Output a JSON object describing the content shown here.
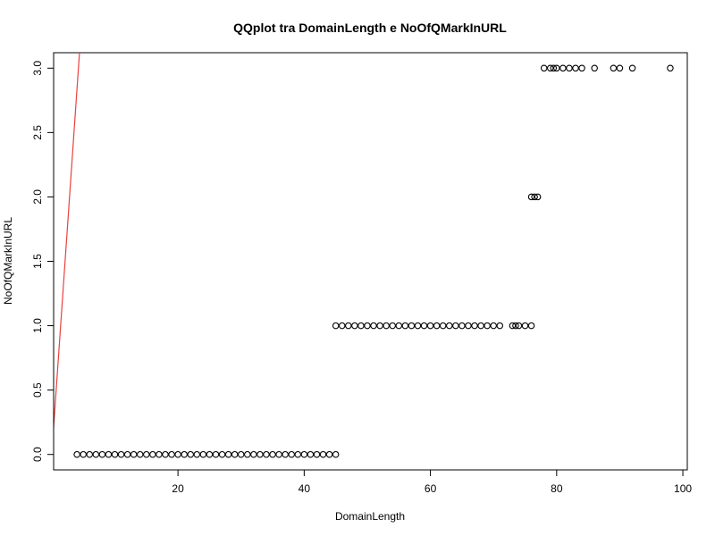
{
  "chart_data": {
    "type": "scatter",
    "title": "QQplot tra DomainLength e NoOfQMarkInURL",
    "xlabel": "DomainLength",
    "ylabel": "NoOfQMarkInURL",
    "xlim": [
      0.3,
      100.7
    ],
    "ylim": [
      -0.12,
      3.12
    ],
    "xticks": [
      20,
      40,
      60,
      80,
      100
    ],
    "yticks": [
      0.0,
      0.5,
      1.0,
      1.5,
      2.0,
      2.5,
      3.0
    ],
    "ytick_labels": [
      "0.0",
      "0.5",
      "1.0",
      "1.5",
      "2.0",
      "2.5",
      "3.0"
    ],
    "grid": false,
    "point_color": "#000000",
    "reference_line": {
      "color": "#e8423f",
      "x": [
        0,
        4.4
      ],
      "y": [
        0,
        3.12
      ]
    },
    "series": [
      {
        "x": [
          4,
          5,
          6,
          7,
          8,
          9,
          10,
          11,
          12,
          13,
          14,
          15,
          16,
          17,
          18,
          19,
          20,
          21,
          22,
          23,
          24,
          25,
          26,
          27,
          28,
          29,
          30,
          31,
          32,
          33,
          34,
          35,
          36,
          37,
          38,
          39,
          40,
          41,
          42,
          43,
          44,
          45,
          45,
          46,
          47,
          48,
          49,
          50,
          51,
          52,
          53,
          54,
          55,
          56,
          57,
          58,
          59,
          60,
          61,
          62,
          63,
          64,
          65,
          66,
          67,
          68,
          69,
          70,
          71,
          73,
          73.5,
          74,
          75,
          76,
          76,
          76.5,
          77,
          78,
          79,
          79.5,
          80,
          81,
          82,
          83,
          84,
          86,
          89,
          90,
          92,
          98
        ],
        "y": [
          0,
          0,
          0,
          0,
          0,
          0,
          0,
          0,
          0,
          0,
          0,
          0,
          0,
          0,
          0,
          0,
          0,
          0,
          0,
          0,
          0,
          0,
          0,
          0,
          0,
          0,
          0,
          0,
          0,
          0,
          0,
          0,
          0,
          0,
          0,
          0,
          0,
          0,
          0,
          0,
          0,
          0,
          1,
          1,
          1,
          1,
          1,
          1,
          1,
          1,
          1,
          1,
          1,
          1,
          1,
          1,
          1,
          1,
          1,
          1,
          1,
          1,
          1,
          1,
          1,
          1,
          1,
          1,
          1,
          1,
          1,
          1,
          1,
          1,
          2,
          2,
          2,
          3,
          3,
          3,
          3,
          3,
          3,
          3,
          3,
          3,
          3,
          3,
          3,
          3
        ]
      }
    ]
  }
}
